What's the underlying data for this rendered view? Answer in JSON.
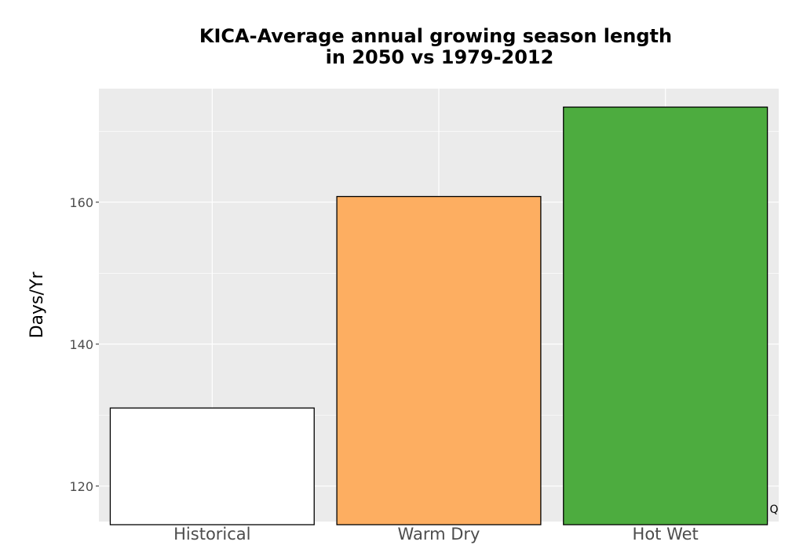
{
  "chart_data": {
    "type": "bar",
    "title_lines": [
      "KICA-Average annual growing season length",
      "in 2050 vs 1979-2012"
    ],
    "xlabel": "",
    "ylabel": "Days/Yr",
    "categories": [
      "Historical",
      "Warm Dry",
      "Hot Wet"
    ],
    "values": [
      131,
      160.8,
      173.4
    ],
    "colors": [
      "#ffffff",
      "#fdae61",
      "#4dac3f"
    ],
    "bar_outline": "#000000",
    "panel_background": "#ebebeb",
    "grid": true,
    "ylim": [
      115,
      176
    ],
    "yticks": [
      120,
      140,
      160
    ],
    "corner_label": "Q"
  }
}
